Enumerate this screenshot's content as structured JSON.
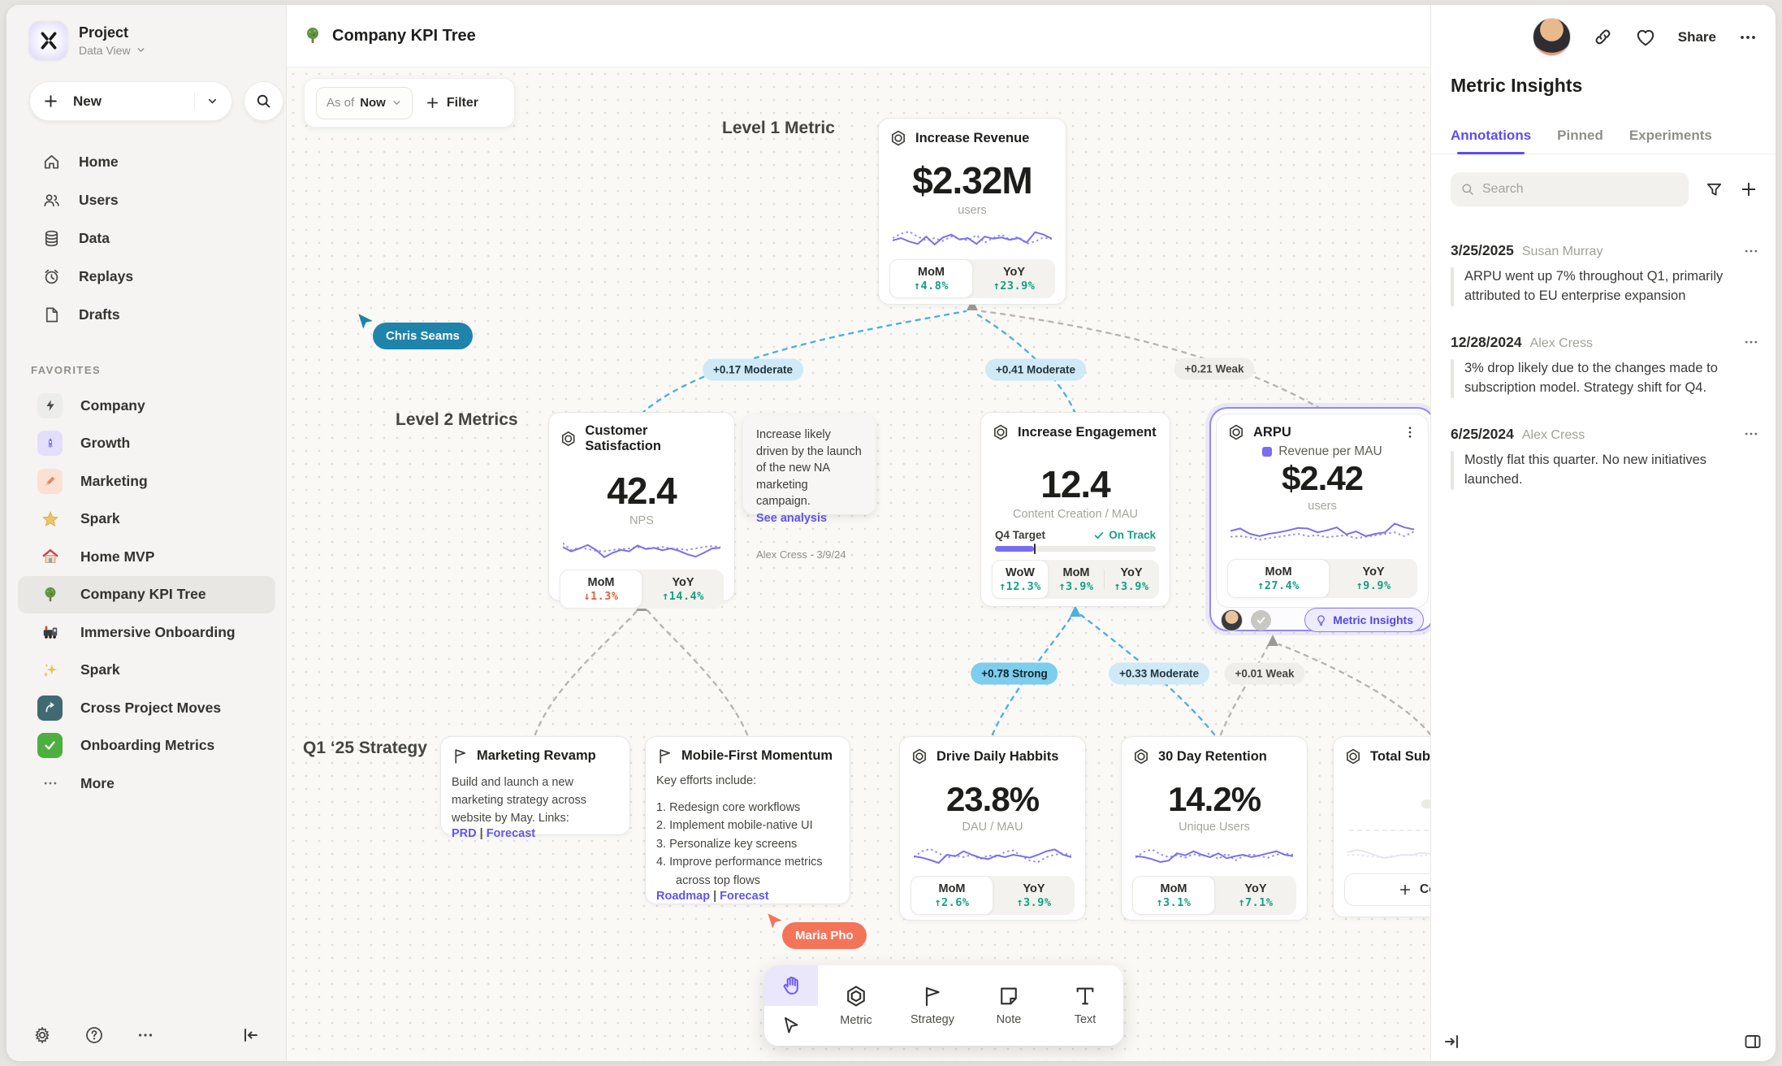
{
  "window": {
    "title": "Company KPI Tree"
  },
  "topbar": {
    "share_label": "Share"
  },
  "sidebar": {
    "project": {
      "name": "Project",
      "view": "Data View"
    },
    "new_label": "New",
    "nav": [
      {
        "label": "Home"
      },
      {
        "label": "Users"
      },
      {
        "label": "Data"
      },
      {
        "label": "Replays"
      },
      {
        "label": "Drafts"
      }
    ],
    "favorites_label": "FAVORITES",
    "favorites": [
      {
        "label": "Company"
      },
      {
        "label": "Growth"
      },
      {
        "label": "Marketing"
      },
      {
        "label": "Spark"
      },
      {
        "label": "Home MVP"
      },
      {
        "label": "Company KPI Tree"
      },
      {
        "label": "Immersive Onboarding"
      },
      {
        "label": "Spark"
      },
      {
        "label": "Cross Project Moves"
      },
      {
        "label": "Onboarding Metrics"
      }
    ],
    "more_label": "More"
  },
  "canvas": {
    "asof_label": "As of",
    "asof_value": "Now",
    "filter_label": "Filter",
    "separator": "|",
    "level_labels": {
      "l1": "Level 1 Metric",
      "l2": "Level 2 Metrics",
      "l3": "Q1 ‘25 Strategy"
    },
    "edges": [
      {
        "label": "+0.17 Moderate"
      },
      {
        "label": "+0.41 Moderate"
      },
      {
        "label": "+0.21 Weak"
      },
      {
        "label": "+0.78 Strong"
      },
      {
        "label": "+0.33 Moderate"
      },
      {
        "label": "+0.01 Weak"
      }
    ],
    "cursors": [
      {
        "name": "Chris Seams",
        "color": "#1e84ac"
      },
      {
        "name": "Maria Pho",
        "color": "#f4745a"
      }
    ],
    "cards": {
      "revenue": {
        "title": "Increase Revenue",
        "value": "$2.32M",
        "unit": "users",
        "stats": [
          {
            "label": "MoM",
            "value": "↑4.8%"
          },
          {
            "label": "YoY",
            "value": "↑23.9%"
          }
        ],
        "sparkline": {
          "solid": [
            0.42,
            0.5,
            0.38,
            0.3,
            0.55,
            0.28,
            0.52,
            0.62,
            0.45,
            0.5,
            0.3,
            0.55,
            0.48,
            0.52,
            0.44,
            0.5,
            0.35,
            0.7,
            0.62,
            0.48
          ],
          "dotted": [
            0.5,
            0.65,
            0.72,
            0.55,
            0.42,
            0.5,
            0.4,
            0.55,
            0.48,
            0.42,
            0.6,
            0.35,
            0.5,
            0.62,
            0.45,
            0.55,
            0.3,
            0.38,
            0.52,
            0.46
          ]
        }
      },
      "csat": {
        "title": "Customer Satisfaction",
        "value": "42.4",
        "unit": "NPS",
        "stats": [
          {
            "label": "MoM",
            "value": "↓1.3%"
          },
          {
            "label": "YoY",
            "value": "↑14.4%"
          }
        ],
        "sparkline": {
          "solid": [
            0.55,
            0.4,
            0.5,
            0.62,
            0.45,
            0.2,
            0.35,
            0.45,
            0.4,
            0.6,
            0.48,
            0.52,
            0.44,
            0.5,
            0.42,
            0.3,
            0.22,
            0.35,
            0.5,
            0.52
          ],
          "dotted": [
            0.68,
            0.45,
            0.52,
            0.48,
            0.42,
            0.4,
            0.45,
            0.48,
            0.5,
            0.55,
            0.5,
            0.52,
            0.55,
            0.5,
            0.48,
            0.45,
            0.5,
            0.55,
            0.58,
            0.55
          ]
        }
      },
      "engagement": {
        "title": "Increase Engagement",
        "value": "12.4",
        "unit": "Content Creation / MAU",
        "target_label": "Q4 Target",
        "target_status": "On Track",
        "progress": 0.24,
        "stats": [
          {
            "label": "WoW",
            "value": "↑12.3%"
          },
          {
            "label": "MoM",
            "value": "↑3.9%"
          },
          {
            "label": "YoY",
            "value": "↑3.9%"
          }
        ]
      },
      "arpu": {
        "title": "ARPU",
        "legend": "Revenue per MAU",
        "value": "$2.42",
        "unit": "users",
        "stats": [
          {
            "label": "MoM",
            "value": "↑27.4%"
          },
          {
            "label": "YoY",
            "value": "↑9.9%"
          }
        ],
        "insights_label": "Metric Insights",
        "sparkline": {
          "solid": [
            0.6,
            0.68,
            0.5,
            0.42,
            0.5,
            0.55,
            0.62,
            0.7,
            0.68,
            0.55,
            0.62,
            0.72,
            0.48,
            0.58,
            0.42,
            0.5,
            0.55,
            0.85,
            0.72,
            0.65
          ],
          "dotted": [
            0.4,
            0.42,
            0.38,
            0.3,
            0.35,
            0.4,
            0.45,
            0.5,
            0.42,
            0.45,
            0.38,
            0.42,
            0.45,
            0.35,
            0.4,
            0.45,
            0.5,
            0.55,
            0.42,
            0.58
          ]
        }
      },
      "note": {
        "text": "Increase likely driven by the launch of the new NA marketing campaign.",
        "link": "See analysis",
        "author_line": "Alex Cress - 3/9/24"
      },
      "marketing_revamp": {
        "title": "Marketing Revamp",
        "body": "Build and launch a new marketing strategy across website by May. Links:",
        "link_a": "PRD",
        "link_b": "Forecast"
      },
      "mobile_first": {
        "title": "Mobile-First Momentum",
        "intro": "Key efforts include:",
        "items": [
          "1. Redesign core workflows",
          "2. Implement mobile-native UI",
          "3. Personalize key screens",
          "4. Improve performance metrics across top flows"
        ],
        "link_a": "Roadmap",
        "link_b": "Forecast"
      },
      "ddh": {
        "title": "Drive Daily Habbits",
        "value": "23.8%",
        "unit": "DAU / MAU",
        "stats": [
          {
            "label": "MoM",
            "value": "↑2.6%"
          },
          {
            "label": "YoY",
            "value": "↑3.9%"
          }
        ],
        "sparkline": {
          "solid": [
            0.45,
            0.4,
            0.32,
            0.22,
            0.5,
            0.45,
            0.62,
            0.5,
            0.4,
            0.35,
            0.48,
            0.42,
            0.5,
            0.45,
            0.4,
            0.5,
            0.62,
            0.68,
            0.5,
            0.42
          ],
          "dotted": [
            0.42,
            0.62,
            0.7,
            0.55,
            0.4,
            0.48,
            0.42,
            0.5,
            0.35,
            0.48,
            0.42,
            0.6,
            0.65,
            0.45,
            0.3,
            0.25,
            0.42,
            0.5,
            0.55,
            0.48
          ]
        }
      },
      "retention": {
        "title": "30 Day Retention",
        "value": "14.2%",
        "unit": "Unique Users",
        "stats": [
          {
            "label": "MoM",
            "value": "↑3.1%"
          },
          {
            "label": "YoY",
            "value": "↑7.1%"
          }
        ],
        "sparkline": {
          "solid": [
            0.45,
            0.42,
            0.35,
            0.25,
            0.3,
            0.55,
            0.48,
            0.62,
            0.5,
            0.42,
            0.55,
            0.38,
            0.45,
            0.5,
            0.42,
            0.48,
            0.55,
            0.62,
            0.5,
            0.45
          ],
          "dotted": [
            0.4,
            0.6,
            0.68,
            0.52,
            0.42,
            0.48,
            0.4,
            0.52,
            0.45,
            0.55,
            0.35,
            0.55,
            0.3,
            0.45,
            0.52,
            0.45,
            0.4,
            0.5,
            0.55,
            0.5
          ]
        }
      },
      "total_sub": {
        "title": "Total Subscript",
        "connect_label": "Connect",
        "sparkline": {
          "solid": [
            0.5,
            0.58,
            0.52,
            0.4,
            0.3,
            0.35,
            0.42,
            0.4,
            0.48,
            0.45,
            0.5,
            0.55,
            0.5,
            0.58,
            0.52,
            0.68,
            0.55,
            0.5,
            0.42,
            0.48
          ],
          "dotted": [
            0.4,
            0.42,
            0.38,
            0.35,
            0.32,
            0.38,
            0.4,
            0.42,
            0.38,
            0.42,
            0.45,
            0.4,
            0.42,
            0.45,
            0.4,
            0.38,
            0.42,
            0.38,
            0.3,
            0.35
          ]
        }
      }
    }
  },
  "tooldock": {
    "tools": [
      {
        "label": "Metric"
      },
      {
        "label": "Strategy"
      },
      {
        "label": "Note"
      },
      {
        "label": "Text"
      }
    ]
  },
  "panel": {
    "title": "Metric Insights",
    "tabs": [
      {
        "label": "Annotations"
      },
      {
        "label": "Pinned"
      },
      {
        "label": "Experiments"
      }
    ],
    "search_placeholder": "Search",
    "annotations": [
      {
        "date": "3/25/2025",
        "author": "Susan Murray",
        "text": "ARPU went up 7% throughout Q1, primarily attributed to EU enterprise expansion"
      },
      {
        "date": "12/28/2024",
        "author": "Alex Cress",
        "text": "3% drop likely due to the changes made to subscription model. Strategy shift for Q4."
      },
      {
        "date": "6/25/2024",
        "author": "Alex Cress",
        "text": "Mostly flat this quarter. No new initiatives launched."
      }
    ]
  },
  "colors": {
    "accent": "#6f61ef",
    "up": "#13a181",
    "down": "#e2603c",
    "edge_blue": "#4fb0de",
    "edge_gray": "#b8b6b2"
  }
}
